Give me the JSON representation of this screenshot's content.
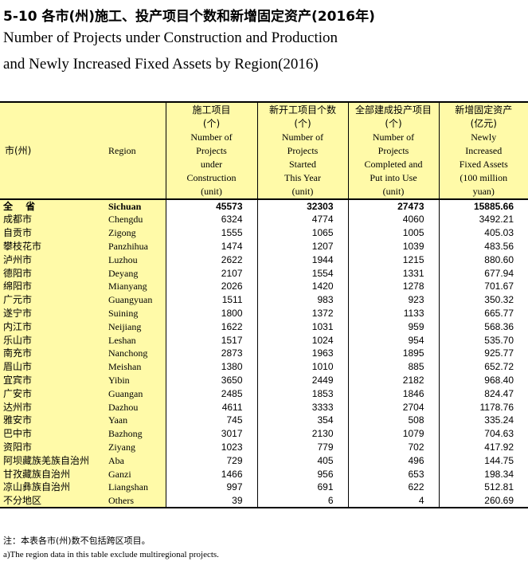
{
  "title": {
    "cn": "5-10 各市(州)施工、投产项目个数和新增固定资产(2016年)",
    "en_line1": "Number of Projects under Construction and Production",
    "en_line2": "and Newly Increased Fixed Assets by Region(2016)"
  },
  "table": {
    "header": {
      "region_cn": "市(州)",
      "region_en": "Region",
      "col1": {
        "cn": "施工项目",
        "unit_cn": "(个)",
        "en_lines": [
          "Number of",
          "Projects",
          "under",
          "Construction",
          "(unit)"
        ]
      },
      "col2": {
        "cn": "新开工项目个数",
        "unit_cn": "(个)",
        "en_lines": [
          "Number of",
          "Projects",
          "Started",
          "This Year",
          "(unit)"
        ]
      },
      "col3": {
        "cn": "全部建成投产项目",
        "unit_cn": "(个)",
        "en_lines": [
          "Number of",
          "Projects",
          "Completed and",
          "Put into Use",
          "(unit)"
        ]
      },
      "col4": {
        "cn": "新增固定资产",
        "unit_cn": "(亿元)",
        "en_lines": [
          "Newly",
          "Increased",
          "Fixed Assets",
          "(100 million",
          "yuan)"
        ]
      }
    },
    "rows": [
      {
        "cn": "全 省",
        "en": "Sichuan",
        "v1": "45573",
        "v2": "32303",
        "v3": "27473",
        "v4": "15885.66",
        "total": true
      },
      {
        "cn": "成都市",
        "en": "Chengdu",
        "v1": "6324",
        "v2": "4774",
        "v3": "4060",
        "v4": "3492.21"
      },
      {
        "cn": "自贡市",
        "en": "Zigong",
        "v1": "1555",
        "v2": "1065",
        "v3": "1005",
        "v4": "405.03"
      },
      {
        "cn": "攀枝花市",
        "en": "Panzhihua",
        "v1": "1474",
        "v2": "1207",
        "v3": "1039",
        "v4": "483.56"
      },
      {
        "cn": "泸州市",
        "en": "Luzhou",
        "v1": "2622",
        "v2": "1944",
        "v3": "1215",
        "v4": "880.60"
      },
      {
        "cn": "德阳市",
        "en": "Deyang",
        "v1": "2107",
        "v2": "1554",
        "v3": "1331",
        "v4": "677.94"
      },
      {
        "cn": "绵阳市",
        "en": "Mianyang",
        "v1": "2026",
        "v2": "1420",
        "v3": "1278",
        "v4": "701.67"
      },
      {
        "cn": "广元市",
        "en": "Guangyuan",
        "v1": "1511",
        "v2": "983",
        "v3": "923",
        "v4": "350.32"
      },
      {
        "cn": "遂宁市",
        "en": "Suining",
        "v1": "1800",
        "v2": "1372",
        "v3": "1133",
        "v4": "665.77"
      },
      {
        "cn": "内江市",
        "en": "Neijiang",
        "v1": "1622",
        "v2": "1031",
        "v3": "959",
        "v4": "568.36"
      },
      {
        "cn": "乐山市",
        "en": "Leshan",
        "v1": "1517",
        "v2": "1024",
        "v3": "954",
        "v4": "535.70"
      },
      {
        "cn": "南充市",
        "en": "Nanchong",
        "v1": "2873",
        "v2": "1963",
        "v3": "1895",
        "v4": "925.77"
      },
      {
        "cn": "眉山市",
        "en": "Meishan",
        "v1": "1380",
        "v2": "1010",
        "v3": "885",
        "v4": "652.72"
      },
      {
        "cn": "宜宾市",
        "en": "Yibin",
        "v1": "3650",
        "v2": "2449",
        "v3": "2182",
        "v4": "968.40"
      },
      {
        "cn": "广安市",
        "en": "Guangan",
        "v1": "2485",
        "v2": "1853",
        "v3": "1846",
        "v4": "824.47"
      },
      {
        "cn": "达州市",
        "en": "Dazhou",
        "v1": "4611",
        "v2": "3333",
        "v3": "2704",
        "v4": "1178.76"
      },
      {
        "cn": "雅安市",
        "en": "Yaan",
        "v1": "745",
        "v2": "354",
        "v3": "508",
        "v4": "335.24"
      },
      {
        "cn": "巴中市",
        "en": "Bazhong",
        "v1": "3017",
        "v2": "2130",
        "v3": "1079",
        "v4": "704.63"
      },
      {
        "cn": "资阳市",
        "en": "Ziyang",
        "v1": "1023",
        "v2": "779",
        "v3": "702",
        "v4": "417.92"
      },
      {
        "cn": "阿坝藏族羌族自治州",
        "en": "Aba",
        "v1": "729",
        "v2": "405",
        "v3": "496",
        "v4": "144.75"
      },
      {
        "cn": "甘孜藏族自治州",
        "en": "Ganzi",
        "v1": "1466",
        "v2": "956",
        "v3": "653",
        "v4": "198.34"
      },
      {
        "cn": "凉山彝族自治州",
        "en": "Liangshan",
        "v1": "997",
        "v2": "691",
        "v3": "622",
        "v4": "512.81"
      },
      {
        "cn": "不分地区",
        "en": "Others",
        "v1": "39",
        "v2": "6",
        "v3": "4",
        "v4": "260.69"
      }
    ]
  },
  "notes": {
    "cn": "注：本表各市(州)数不包括跨区项目。",
    "en": "a)The region data in this table exclude multiregional projects."
  },
  "colors": {
    "header_fill": "#fffaa8",
    "rule": "#000000"
  }
}
